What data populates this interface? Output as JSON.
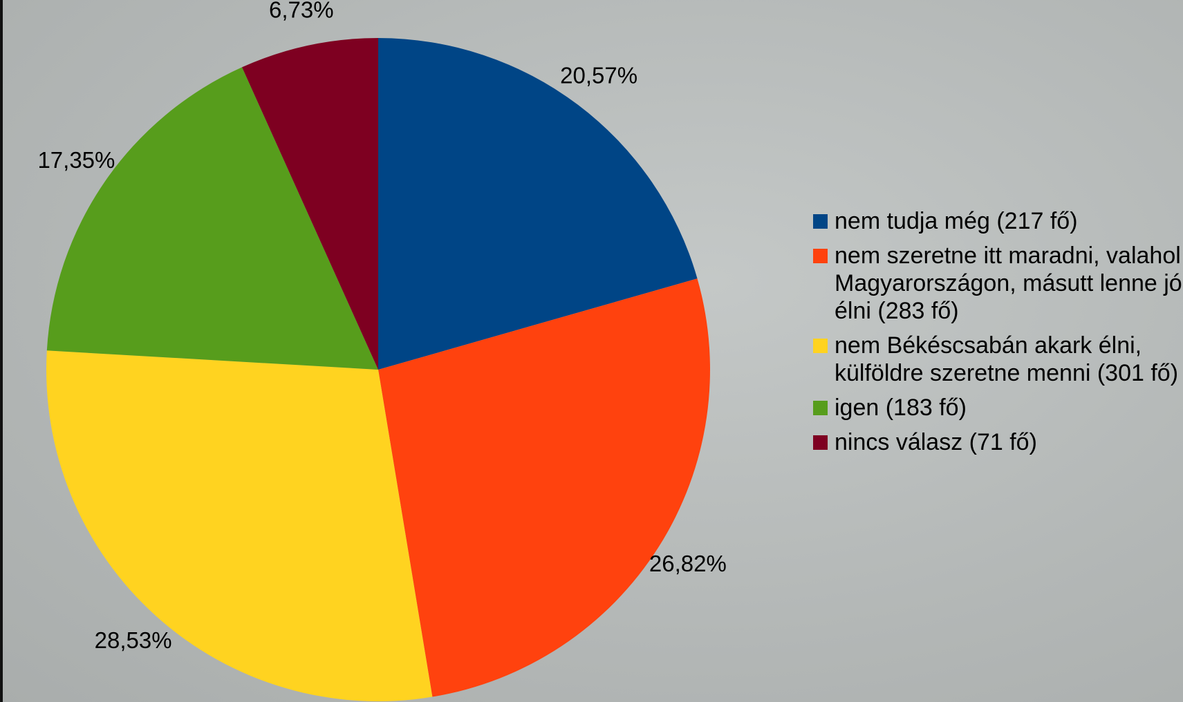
{
  "chart_data": {
    "type": "pie",
    "series": [
      {
        "name": "nem tudja még (217 fő)",
        "color": "#004586"
      },
      {
        "name": "nem szeretne itt maradni, valahol Magyarországon, másutt lenne jó élni (283 fő)",
        "color": "#ff420e"
      },
      {
        "name": "nem Békéscsabán akark élni, külföldre szeretne menni (301 fő)",
        "color": "#ffd320"
      },
      {
        "name": "igen (183 fő)",
        "color": "#579d1c"
      },
      {
        "name": "nincs válasz (71 fő)",
        "color": "#7e0021"
      }
    ],
    "values": [
      20.57,
      26.82,
      28.53,
      17.35,
      6.73
    ],
    "value_labels": [
      "20,57%",
      "26,82%",
      "28,53%",
      "17,35%",
      "6,73%"
    ]
  }
}
